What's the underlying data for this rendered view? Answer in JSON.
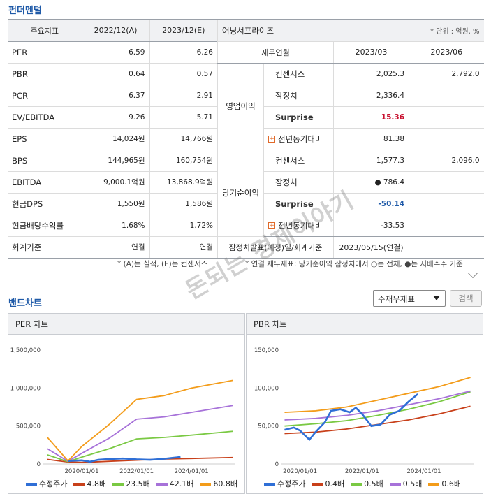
{
  "fundamentals": {
    "title": "펀더멘털",
    "headers": [
      "주요지표",
      "2022/12(A)",
      "2023/12(E)"
    ],
    "rows": [
      {
        "label": "PER",
        "a": "6.59",
        "e": "6.26"
      },
      {
        "label": "PBR",
        "a": "0.64",
        "e": "0.57"
      },
      {
        "label": "PCR",
        "a": "6.37",
        "e": "2.91"
      },
      {
        "label": "EV/EBITDA",
        "a": "9.26",
        "e": "5.71"
      },
      {
        "label": "EPS",
        "a": "14,024원",
        "e": "14,766원"
      },
      {
        "label": "BPS",
        "a": "144,965원",
        "e": "160,754원"
      },
      {
        "label": "EBITDA",
        "a": "9,000.1억원",
        "e": "13,868.9억원"
      },
      {
        "label": "현금DPS",
        "a": "1,550원",
        "e": "1,586원"
      },
      {
        "label": "현금배당수익률",
        "a": "1.68%",
        "e": "1.72%"
      },
      {
        "label": "회계기준",
        "a": "연결",
        "e": "연결"
      }
    ],
    "footnote": "* (A)는 실적, (E)는 컨센서스"
  },
  "earnings_surprise": {
    "title": "어닝서프라이즈",
    "unit": "* 단위 : 억원, %",
    "headers": [
      "재무연월",
      "2023/03",
      "2023/06"
    ],
    "operating": {
      "group": "영업이익",
      "rows": [
        {
          "label": "컨센서스",
          "v1": "2,025.3",
          "v2": "2,792.0"
        },
        {
          "label": "잠정치",
          "v1": "2,336.4",
          "v2": ""
        },
        {
          "label": "Surprise",
          "v1": "15.36",
          "v2": ""
        },
        {
          "label": "전년동기대비",
          "v1": "81.38",
          "v2": ""
        }
      ]
    },
    "net_income": {
      "group": "당기순이익",
      "rows": [
        {
          "label": "컨센서스",
          "v1": "1,577.3",
          "v2": "2,096.0"
        },
        {
          "label": "잠정치",
          "v1": "● 786.4",
          "v2": ""
        },
        {
          "label": "Surprise",
          "v1": "-50.14",
          "v2": ""
        },
        {
          "label": "전년동기대비",
          "v1": "-33.53",
          "v2": ""
        }
      ]
    },
    "announce": {
      "label": "잠정치발표(예정)일/회계기준",
      "value": "2023/05/15(연결)"
    },
    "footnote": "* 연결 재무제표: 당기순이익 잠정치에서 ○는 전체, ●는 지배주주 기준"
  },
  "band_chart": {
    "title": "밴드차트",
    "select_value": "주재무제표",
    "search_label": "검색"
  },
  "watermark": "돈되는 경제이야기",
  "chart_data": [
    {
      "type": "line",
      "title": "PER 차트",
      "ylim": [
        0,
        1500000
      ],
      "yticks": [
        "0",
        "500,000",
        "1,000,000",
        "1,500,000"
      ],
      "xticks": [
        "2020/01/01",
        "2022/01/01",
        "2024/01/01"
      ],
      "x": [
        2018.75,
        2019.5,
        2020.0,
        2021.0,
        2022.0,
        2023.0,
        2024.0,
        2025.5
      ],
      "series": [
        {
          "name": "4.8배",
          "color": "#c8401a",
          "values": [
            60000,
            25000,
            20000,
            35000,
            50000,
            65000,
            72000,
            85000
          ]
        },
        {
          "name": "23.5배",
          "color": "#7ac943",
          "values": [
            120000,
            30000,
            90000,
            200000,
            330000,
            350000,
            380000,
            430000
          ]
        },
        {
          "name": "42.1배",
          "color": "#a772d9",
          "values": [
            200000,
            35000,
            140000,
            340000,
            590000,
            620000,
            680000,
            770000
          ]
        },
        {
          "name": "60.8배",
          "color": "#f39c1a",
          "values": [
            350000,
            40000,
            230000,
            520000,
            850000,
            900000,
            1000000,
            1100000
          ]
        }
      ],
      "price": {
        "name": "수정주가",
        "color": "#2f6fd6",
        "x": [
          2019.5,
          2020.0,
          2020.3,
          2020.6,
          2021.0,
          2021.5,
          2022.0,
          2022.5,
          2023.0,
          2023.3,
          2023.6
        ],
        "values": [
          40000,
          48000,
          30000,
          55000,
          65000,
          72000,
          60000,
          55000,
          68000,
          80000,
          92000
        ]
      }
    },
    {
      "type": "line",
      "title": "PBR 차트",
      "ylim": [
        0,
        150000
      ],
      "yticks": [
        "0",
        "50,000",
        "100,000",
        "150,000"
      ],
      "xticks": [
        "2020/01/01",
        "2022/01/01",
        "2024/01/01"
      ],
      "x": [
        2019.5,
        2020.5,
        2021.5,
        2022.5,
        2023.5,
        2024.5,
        2025.5
      ],
      "series": [
        {
          "name": "0.4배",
          "color": "#c8401a",
          "values": [
            40000,
            42000,
            46000,
            52000,
            58000,
            66000,
            76000
          ]
        },
        {
          "name": "0.5배",
          "color": "#7ac943",
          "values": [
            50000,
            53000,
            57000,
            64000,
            72000,
            82000,
            95000
          ]
        },
        {
          "name": "0.5배",
          "color": "#a772d9",
          "values": [
            58000,
            60000,
            64000,
            70000,
            78000,
            86000,
            96000
          ]
        },
        {
          "name": "0.6배",
          "color": "#f39c1a",
          "values": [
            68000,
            70000,
            75000,
            84000,
            93000,
            102000,
            114000
          ]
        }
      ],
      "price": {
        "name": "수정주가",
        "color": "#2f6fd6",
        "x": [
          2019.5,
          2019.8,
          2020.0,
          2020.3,
          2020.5,
          2020.8,
          2021.0,
          2021.3,
          2021.6,
          2021.8,
          2022.0,
          2022.3,
          2022.6,
          2022.9,
          2023.2,
          2023.5,
          2023.8
        ],
        "values": [
          45000,
          48000,
          44000,
          32000,
          42000,
          55000,
          70000,
          72000,
          68000,
          74000,
          66000,
          50000,
          52000,
          65000,
          70000,
          82000,
          92000
        ]
      }
    }
  ]
}
